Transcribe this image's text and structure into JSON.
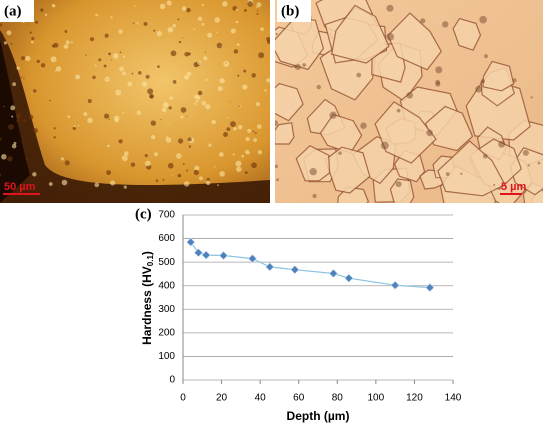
{
  "panels": {
    "a": {
      "label": "(a)",
      "scale": "50 µm"
    },
    "b": {
      "label": "(b)",
      "scale": "5 µm"
    },
    "c": {
      "label": "(c)"
    }
  },
  "chart_data": {
    "type": "line",
    "x": [
      4,
      8,
      12,
      21,
      36,
      45,
      58,
      78,
      86,
      110,
      128
    ],
    "values": [
      585,
      540,
      530,
      528,
      515,
      480,
      468,
      452,
      432,
      402,
      392
    ],
    "color": "#4f81bd",
    "line_color": "#8cc4e0",
    "xlim": [
      0,
      140
    ],
    "xticks": [
      0,
      20,
      40,
      60,
      80,
      100,
      120,
      140
    ],
    "ylim": [
      0,
      700
    ],
    "yticks": [
      0,
      100,
      200,
      300,
      400,
      500,
      600,
      700
    ],
    "grid": true,
    "xlabel": "Depth (µm)",
    "ylabel": [
      "Hardness (HV",
      "0.1",
      ")"
    ]
  }
}
